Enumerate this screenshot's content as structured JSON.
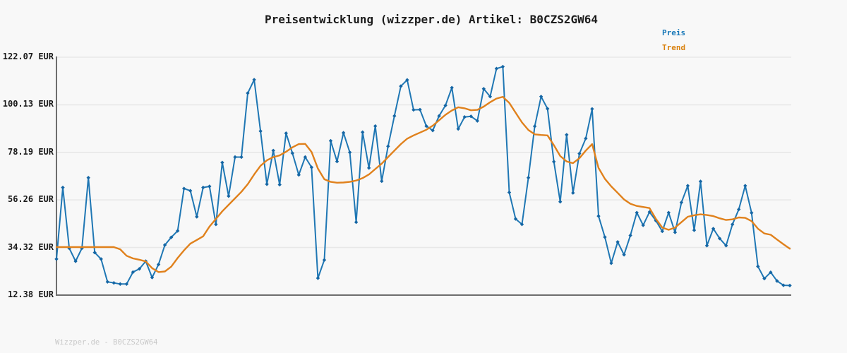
{
  "title": "Preisentwicklung (wizzper.de) Artikel: B0CZS2GW64",
  "legend": {
    "preis_label": "Preis",
    "trend_label": "Trend"
  },
  "footer": "Wizzper.de - B0CZS2GW64",
  "colors": {
    "background": "#f8f8f8",
    "grid": "#e8e8e8",
    "spine": "#6e6e6e",
    "title_text": "#1c1c1c",
    "tick_text": "#1a1a1a",
    "footer_text": "#c9c9c9",
    "preis_line": "#1f77b4",
    "preis_marker": "#1566a4",
    "trend_line": "#e0811c",
    "legend_preis": "#1878b8",
    "legend_trend": "#d9820f"
  },
  "y_axis": {
    "tick_labels": [
      "122.07 EUR",
      "100.13 EUR",
      "78.19 EUR",
      "56.26 EUR",
      "34.32 EUR",
      "12.38 EUR"
    ],
    "tick_values": [
      122.07,
      100.13,
      78.19,
      56.26,
      34.32,
      12.38
    ],
    "unit": "EUR"
  },
  "chart_data": {
    "type": "line",
    "title": "Preisentwicklung (wizzper.de) Artikel: B0CZS2GW64",
    "xlabel": "",
    "ylabel": "EUR",
    "ylim": [
      12.38,
      122.07
    ],
    "grid": "horizontal",
    "legend_position": "top-right",
    "x_tick_labels_visible": false,
    "series": [
      {
        "name": "Preis",
        "color": "#1f77b4",
        "marker": "diamond",
        "values": [
          29,
          62,
          34,
          28,
          34,
          66.5,
          32,
          29,
          18.5,
          18,
          17.5,
          17.5,
          23,
          24.5,
          28,
          20.5,
          26.5,
          35.5,
          39,
          42,
          61.5,
          60.5,
          48.5,
          62,
          62.5,
          45,
          73.5,
          58,
          76,
          76,
          105.5,
          111.7,
          88,
          63.5,
          79,
          63.3,
          87,
          77.8,
          67.8,
          76,
          71.3,
          20.2,
          28.6,
          83.5,
          74,
          87.2,
          78.2,
          46,
          87.5,
          71,
          90.3,
          64.9,
          81,
          95,
          108.7,
          111.6,
          97.8,
          97.9,
          90.3,
          88.3,
          95,
          99.8,
          108,
          89,
          94.5,
          94.8,
          92.7,
          107.5,
          103.9,
          116.8,
          117.7,
          59.7,
          47.5,
          45,
          66.5,
          90.2,
          103.9,
          98.3,
          73.9,
          55.4,
          86.3,
          59.5,
          77.6,
          84.6,
          98.2,
          48.8,
          39.1,
          27.1,
          36.9,
          31,
          39.9,
          50.4,
          44.6,
          50.7,
          46.7,
          41.8,
          50.4,
          41.3,
          55.1,
          62.8,
          42.3,
          64.8,
          35.2,
          43,
          38.5,
          35.2,
          45,
          51.9,
          62.8,
          50.3,
          25.6,
          20,
          22.9,
          18.9,
          16.9,
          16.8
        ]
      },
      {
        "name": "Trend",
        "color": "#e0811c",
        "marker": "none",
        "values": [
          34.5,
          34.5,
          34.5,
          34.5,
          34.5,
          34.5,
          34.5,
          34.5,
          34.5,
          34.5,
          33.5,
          30.5,
          29.3,
          28.7,
          27.9,
          24.8,
          23,
          23.3,
          25.5,
          29.5,
          33,
          36.1,
          37.8,
          39.5,
          44,
          47.5,
          51,
          54,
          57,
          60,
          63.5,
          68,
          72,
          74.5,
          76,
          76.8,
          78.5,
          80.5,
          82,
          82.1,
          78.4,
          70.7,
          65.8,
          64.6,
          64.2,
          64.3,
          64.6,
          65.2,
          66.3,
          68,
          70.5,
          73,
          76,
          79,
          82,
          84.5,
          86,
          87.3,
          88.6,
          90.5,
          93,
          95.5,
          97.5,
          99,
          98.5,
          97.6,
          97.8,
          99.3,
          101.3,
          103,
          103.8,
          101,
          96.5,
          92,
          88.5,
          86.5,
          86.2,
          86,
          81.5,
          76.5,
          74,
          73.2,
          75.5,
          79,
          82,
          71,
          66,
          62.5,
          59.5,
          56.5,
          54.5,
          53.5,
          53,
          52.5,
          47.5,
          43.5,
          42.5,
          43.5,
          46,
          48.5,
          49.2,
          49.6,
          49.3,
          48.8,
          47.8,
          47,
          47.3,
          48.2,
          48,
          46.5,
          43,
          40.8,
          40.2,
          38,
          35.8,
          33.8
        ]
      }
    ]
  }
}
